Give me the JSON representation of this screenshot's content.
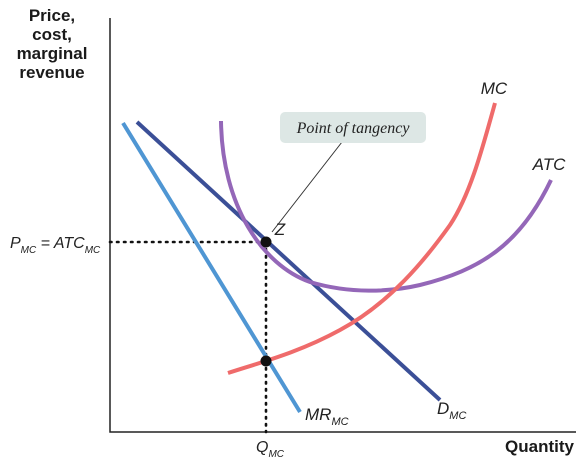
{
  "y_axis_label": [
    "Price,",
    "cost,",
    "marginal",
    "revenue"
  ],
  "x_axis_label": "Quantity",
  "curves": {
    "mc": "MC",
    "atc": "ATC",
    "demand_main": "D",
    "demand_sub": "MC",
    "mr_main": "MR",
    "mr_sub": "MC"
  },
  "points": {
    "tangency_letter": "Z",
    "callout": "Point of tangency"
  },
  "axis_marks": {
    "price_p": "P",
    "price_p_sub": "MC",
    "price_eq": " = ATC",
    "price_atc_sub": "MC",
    "qty_q": "Q",
    "qty_q_sub": "MC"
  },
  "colors": {
    "mc": "#ef6b6b",
    "atc": "#9467b8",
    "demand": "#3b4f97",
    "mr": "#4f96d3",
    "callout_bg": "#dde7e5",
    "dots": "#111111"
  }
}
